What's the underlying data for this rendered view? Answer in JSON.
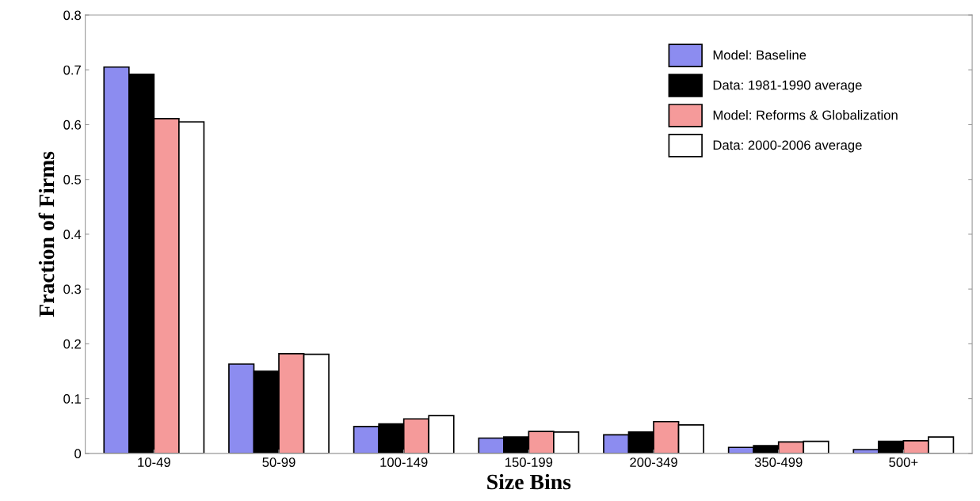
{
  "chart_data": {
    "type": "bar",
    "xlabel": "Size Bins",
    "ylabel": "Fraction of Firms",
    "categories": [
      "10-49",
      "50-99",
      "100-149",
      "150-199",
      "200-349",
      "350-499",
      "500+"
    ],
    "series": [
      {
        "name": "Model: Baseline",
        "color": "#8c8cf0",
        "values": [
          0.705,
          0.163,
          0.049,
          0.028,
          0.034,
          0.011,
          0.007
        ]
      },
      {
        "name": "Data: 1981-1990 average",
        "color": "#000000",
        "values": [
          0.692,
          0.15,
          0.054,
          0.03,
          0.039,
          0.014,
          0.022
        ]
      },
      {
        "name": "Model: Reforms & Globalization",
        "color": "#f59a9a",
        "values": [
          0.611,
          0.182,
          0.063,
          0.04,
          0.058,
          0.021,
          0.023
        ]
      },
      {
        "name": "Data: 2000-2006 average",
        "color": "#ffffff",
        "values": [
          0.605,
          0.181,
          0.069,
          0.039,
          0.052,
          0.022,
          0.03
        ]
      }
    ],
    "ylim": [
      0,
      0.8
    ],
    "yticks": [
      0,
      0.1,
      0.2,
      0.3,
      0.4,
      0.5,
      0.6,
      0.7,
      0.8
    ],
    "legend": "top right"
  }
}
